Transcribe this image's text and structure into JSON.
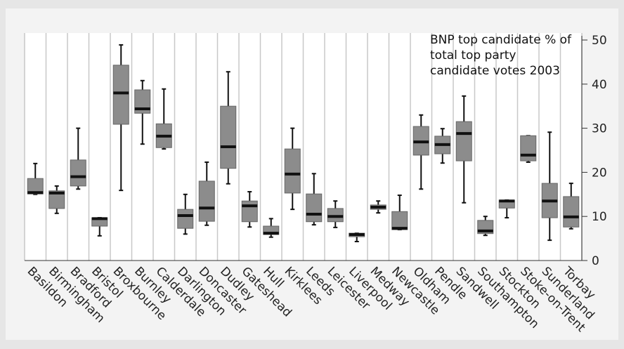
{
  "chart_data": {
    "type": "box",
    "title": "BNP top candidate % of total top party candidate votes 2003",
    "categories": [
      "Basildon",
      "Birmingham",
      "Bradford",
      "Bristol",
      "Broxbourne",
      "Burnley",
      "Calderdale",
      "Darlington",
      "Doncaster",
      "Dudley",
      "Gateshead",
      "Hull",
      "Kirklees",
      "Leeds",
      "Leicester",
      "Liverpool",
      "Medway",
      "Newcastle",
      "Oldham",
      "Pendle",
      "Sandwell",
      "Southampton",
      "Stockton",
      "Stoke-on-Trent",
      "Sunderland",
      "Torbay"
    ],
    "boxes": [
      {
        "min": 15,
        "q1": 15.1,
        "median": 15.4,
        "q3": 18.6,
        "max": 22
      },
      {
        "min": 10.7,
        "q1": 11.8,
        "median": 15.3,
        "q3": 15.8,
        "max": 16.9
      },
      {
        "min": 16.2,
        "q1": 16.9,
        "median": 19,
        "q3": 22.8,
        "max": 30
      },
      {
        "min": 5.6,
        "q1": 7.8,
        "median": 9.5,
        "q3": 9.7,
        "max": 9.7
      },
      {
        "min": 15.9,
        "q1": 30.9,
        "median": 38,
        "q3": 44.3,
        "max": 48.9
      },
      {
        "min": 26.4,
        "q1": 33.4,
        "median": 34.4,
        "q3": 38.7,
        "max": 40.8
      },
      {
        "min": 25.3,
        "q1": 25.6,
        "median": 28.2,
        "q3": 31,
        "max": 38.9
      },
      {
        "min": 6,
        "q1": 7.3,
        "median": 10.2,
        "q3": 11.6,
        "max": 15
      },
      {
        "min": 8,
        "q1": 8.9,
        "median": 11.9,
        "q3": 18,
        "max": 22.3
      },
      {
        "min": 17.4,
        "q1": 20.9,
        "median": 25.8,
        "q3": 35,
        "max": 42.8
      },
      {
        "min": 7.6,
        "q1": 8.8,
        "median": 12.4,
        "q3": 13.5,
        "max": 15.6
      },
      {
        "min": 5.3,
        "q1": 5.9,
        "median": 6.2,
        "q3": 7.8,
        "max": 9.5
      },
      {
        "min": 11.6,
        "q1": 15.3,
        "median": 19.6,
        "q3": 25.3,
        "max": 30
      },
      {
        "min": 8.1,
        "q1": 8.8,
        "median": 10.5,
        "q3": 15.1,
        "max": 19.7
      },
      {
        "min": 7.5,
        "q1": 8.8,
        "median": 10,
        "q3": 11.8,
        "max": 13.5
      },
      {
        "min": 4.3,
        "q1": 5.4,
        "median": 5.9,
        "q3": 6.2,
        "max": 6.2
      },
      {
        "min": 10.8,
        "q1": 11.6,
        "median": 12.1,
        "q3": 12.6,
        "max": 13.5
      },
      {
        "min": 7,
        "q1": 7,
        "median": 7.3,
        "q3": 11.1,
        "max": 14.8
      },
      {
        "min": 16.2,
        "q1": 23.9,
        "median": 26.9,
        "q3": 30.4,
        "max": 33
      },
      {
        "min": 22.1,
        "q1": 24.2,
        "median": 26.3,
        "q3": 28.2,
        "max": 29.9
      },
      {
        "min": 13.1,
        "q1": 22.6,
        "median": 28.8,
        "q3": 31.5,
        "max": 37.3
      },
      {
        "min": 5.7,
        "q1": 6.1,
        "median": 6.7,
        "q3": 9.1,
        "max": 10
      },
      {
        "min": 9.7,
        "q1": 11.9,
        "median": 13.5,
        "q3": 13.7,
        "max": 13.7
      },
      {
        "min": 22.3,
        "q1": 22.6,
        "median": 23.9,
        "q3": 28.3,
        "max": 28.3
      },
      {
        "min": 4.6,
        "q1": 9.7,
        "median": 13.5,
        "q3": 17.5,
        "max": 29.1
      },
      {
        "min": 7.2,
        "q1": 7.6,
        "median": 9.9,
        "q3": 14.5,
        "max": 17.5
      }
    ],
    "color": "#8c8c8c",
    "ylim": [
      0,
      50
    ],
    "yticks": [
      0,
      10,
      20,
      30,
      40,
      50
    ],
    "grid": true
  }
}
